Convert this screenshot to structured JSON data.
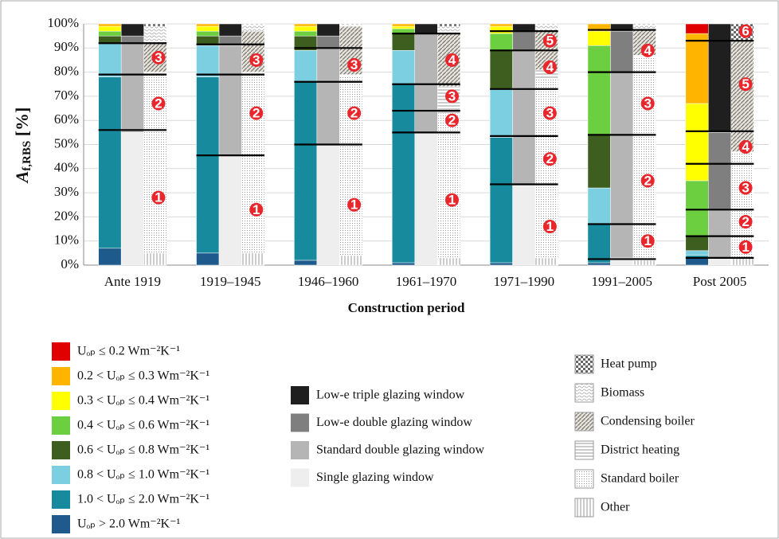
{
  "chart_data": {
    "type": "grouped_stacked_bar",
    "x_label": "Construction period",
    "y_label": {
      "main": "A",
      "sub": "f,RBS",
      "rest": " [%]"
    },
    "categories": [
      "Ante 1919",
      "1919–1945",
      "1946–1960",
      "1961–1970",
      "1971–1990",
      "1991–2005",
      "Post 2005"
    ],
    "ylim": [
      0,
      100
    ],
    "yticks": [
      {
        "value": 0,
        "label": "0%"
      },
      {
        "value": 10,
        "label": "10%"
      },
      {
        "value": 20,
        "label": "20%"
      },
      {
        "value": 30,
        "label": "30%"
      },
      {
        "value": 40,
        "label": "40%"
      },
      {
        "value": 50,
        "label": "50%"
      },
      {
        "value": 60,
        "label": "60%"
      },
      {
        "value": 70,
        "label": "70%"
      },
      {
        "value": 80,
        "label": "80%"
      },
      {
        "value": 90,
        "label": "90%"
      },
      {
        "value": 100,
        "label": "100%"
      }
    ],
    "grid": true,
    "envelope": {
      "series": [
        {
          "name": "Uₒₚ > 2.0 Wm⁻²K⁻¹",
          "color": "#1f5a8c",
          "values": [
            7,
            5,
            2,
            1,
            1,
            1,
            3
          ]
        },
        {
          "name": "1.0 < Uₒₚ ≤ 2.0 Wm⁻²K⁻¹",
          "color": "#178a9e",
          "values": [
            71,
            73,
            74,
            74,
            52,
            16,
            1
          ]
        },
        {
          "name": "0.8 < Uₒₚ ≤ 1.0 Wm⁻²K⁻¹",
          "color": "#7ccfe0",
          "values": [
            14,
            13,
            13,
            14,
            20,
            15,
            2
          ]
        },
        {
          "name": "0.6 < Uₒₚ ≤ 0.8 Wm⁻²K⁻¹",
          "color": "#3d5e1e",
          "values": [
            3,
            4,
            6,
            7,
            16,
            22,
            6
          ]
        },
        {
          "name": "0.4 < Uₒₚ ≤ 0.6 Wm⁻²K⁻¹",
          "color": "#6ccf40",
          "values": [
            2,
            2,
            2,
            2,
            7,
            37,
            23
          ]
        },
        {
          "name": "0.3 < Uₒₚ ≤ 0.4 Wm⁻²K⁻¹",
          "color": "#ffff00",
          "values": [
            2,
            2,
            2,
            1,
            3,
            6,
            32
          ]
        },
        {
          "name": "0.2 < Uₒₚ ≤ 0.3 Wm⁻²K⁻¹",
          "color": "#ffb400",
          "values": [
            1,
            1,
            1,
            1,
            1,
            3,
            29
          ]
        },
        {
          "name": "Uₒₚ ≤ 0.2 Wm⁻²K⁻¹",
          "color": "#e00000",
          "values": [
            0,
            0,
            0,
            0,
            0,
            0,
            4
          ]
        }
      ]
    },
    "windows": {
      "series": [
        {
          "name": "Single glazing window",
          "color": "#eeeeee",
          "values": [
            55,
            45,
            50,
            55,
            33,
            3,
            3
          ]
        },
        {
          "name": "Standard double glazing window",
          "color": "#b5b5b5",
          "values": [
            37,
            46,
            40,
            41,
            56,
            77,
            20
          ]
        },
        {
          "name": "Low-e double glazing window",
          "color": "#7f7f7f",
          "values": [
            3,
            4,
            5,
            0,
            8,
            17,
            32
          ]
        },
        {
          "name": "Low-e triple glazing window",
          "color": "#1f1f1f",
          "values": [
            5,
            5,
            5,
            4,
            3,
            3,
            45
          ]
        }
      ]
    },
    "heating": {
      "series": [
        {
          "name": "Other",
          "pattern": "vlines",
          "values": [
            5,
            5,
            4,
            3,
            3,
            2,
            3
          ]
        },
        {
          "name": "Standard boiler",
          "pattern": "dots",
          "values": [
            74,
            74,
            74,
            60,
            74,
            84,
            44
          ]
        },
        {
          "name": "District heating",
          "pattern": "hlines",
          "values": [
            1,
            1,
            1,
            11,
            4,
            1,
            0
          ]
        },
        {
          "name": "Condensing boiler",
          "pattern": "diag",
          "values": [
            12,
            17,
            20,
            22,
            16,
            11,
            46
          ]
        },
        {
          "name": "Biomass",
          "pattern": "wave",
          "values": [
            7,
            3,
            1,
            3,
            3,
            2,
            0
          ]
        },
        {
          "name": "Heat pump",
          "pattern": "check",
          "values": [
            1,
            0,
            0,
            1,
            0,
            0,
            7
          ]
        }
      ]
    },
    "step_lines": [
      [
        56,
        79,
        92
      ],
      [
        45.5,
        79,
        91.5
      ],
      [
        50,
        76,
        90
      ],
      [
        55,
        64,
        75,
        96
      ],
      [
        33.5,
        53.5,
        73,
        89,
        97
      ],
      [
        2.5,
        17,
        54,
        80,
        97.5
      ],
      [
        3,
        12,
        23,
        42,
        55.5,
        93
      ]
    ],
    "step_labels": [
      [
        {
          "label": 1,
          "value": 28
        },
        {
          "label": 2,
          "value": 67
        },
        {
          "label": 3,
          "value": 86
        }
      ],
      [
        {
          "label": 1,
          "value": 23
        },
        {
          "label": 2,
          "value": 63
        },
        {
          "label": 3,
          "value": 85
        }
      ],
      [
        {
          "label": 1,
          "value": 25
        },
        {
          "label": 2,
          "value": 63
        },
        {
          "label": 3,
          "value": 83
        }
      ],
      [
        {
          "label": 1,
          "value": 27
        },
        {
          "label": 2,
          "value": 60
        },
        {
          "label": 3,
          "value": 70
        },
        {
          "label": 4,
          "value": 85
        }
      ],
      [
        {
          "label": 1,
          "value": 16
        },
        {
          "label": 2,
          "value": 44
        },
        {
          "label": 3,
          "value": 63
        },
        {
          "label": 4,
          "value": 82
        },
        {
          "label": 5,
          "value": 93
        }
      ],
      [
        {
          "label": 1,
          "value": 10
        },
        {
          "label": 2,
          "value": 35
        },
        {
          "label": 3,
          "value": 67
        },
        {
          "label": 4,
          "value": 89
        }
      ],
      [
        {
          "label": 1,
          "value": 7.5
        },
        {
          "label": 2,
          "value": 18
        },
        {
          "label": 3,
          "value": 32
        },
        {
          "label": 4,
          "value": 49
        },
        {
          "label": 5,
          "value": 75
        },
        {
          "label": 6,
          "value": 97
        }
      ]
    ]
  }
}
